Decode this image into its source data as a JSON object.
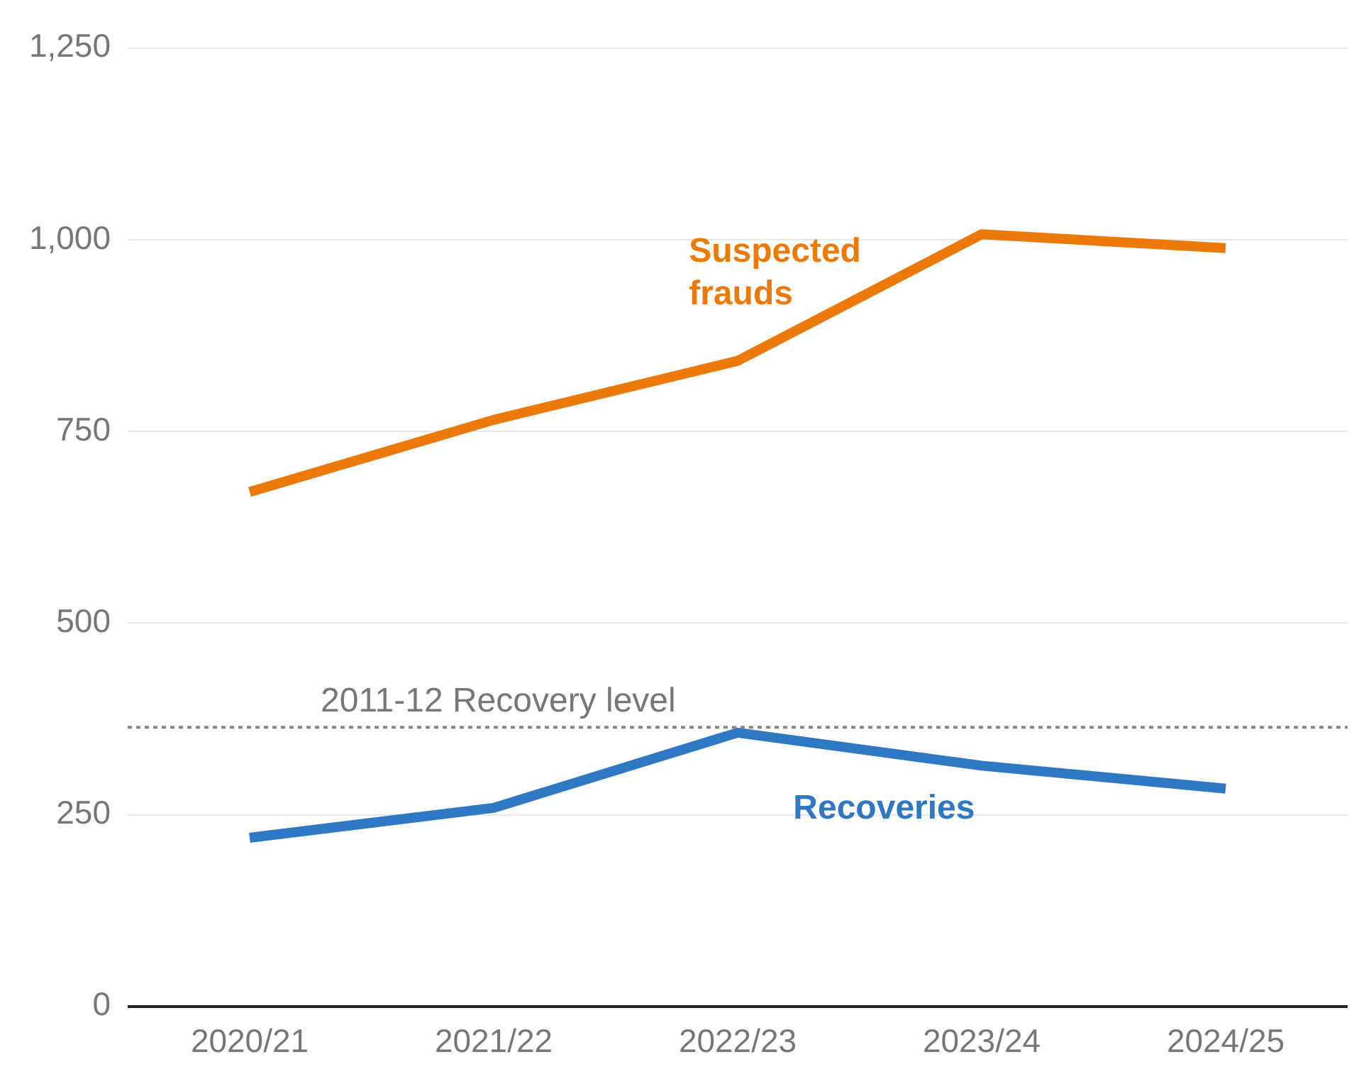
{
  "chart_data": {
    "type": "line",
    "categories": [
      "2020/21",
      "2021/22",
      "2022/23",
      "2023/24",
      "2024/25"
    ],
    "series": [
      {
        "name": "Suspected frauds",
        "color": "#ec7a0b",
        "values": [
          671,
          765,
          842,
          1007,
          989
        ]
      },
      {
        "name": "Recoveries",
        "color": "#2f78c4",
        "values": [
          220,
          259,
          357,
          314,
          284
        ]
      }
    ],
    "ylim": [
      0,
      1250
    ],
    "yticks": [
      0,
      {
        "value": 250,
        "label": "250"
      },
      {
        "value": 500,
        "label": "500"
      },
      {
        "value": 750,
        "label": "750"
      },
      {
        "value": 1000,
        "label": "1,000"
      },
      {
        "value": 1250,
        "label": "1,250"
      }
    ],
    "grid": "y",
    "legend": false,
    "marker": "none",
    "line_style": "solid",
    "ref_lines": [
      {
        "axis": "y",
        "value": 364,
        "label": "2011-12 Recovery level",
        "color": "#888888",
        "line_style": "dotted"
      }
    ]
  }
}
